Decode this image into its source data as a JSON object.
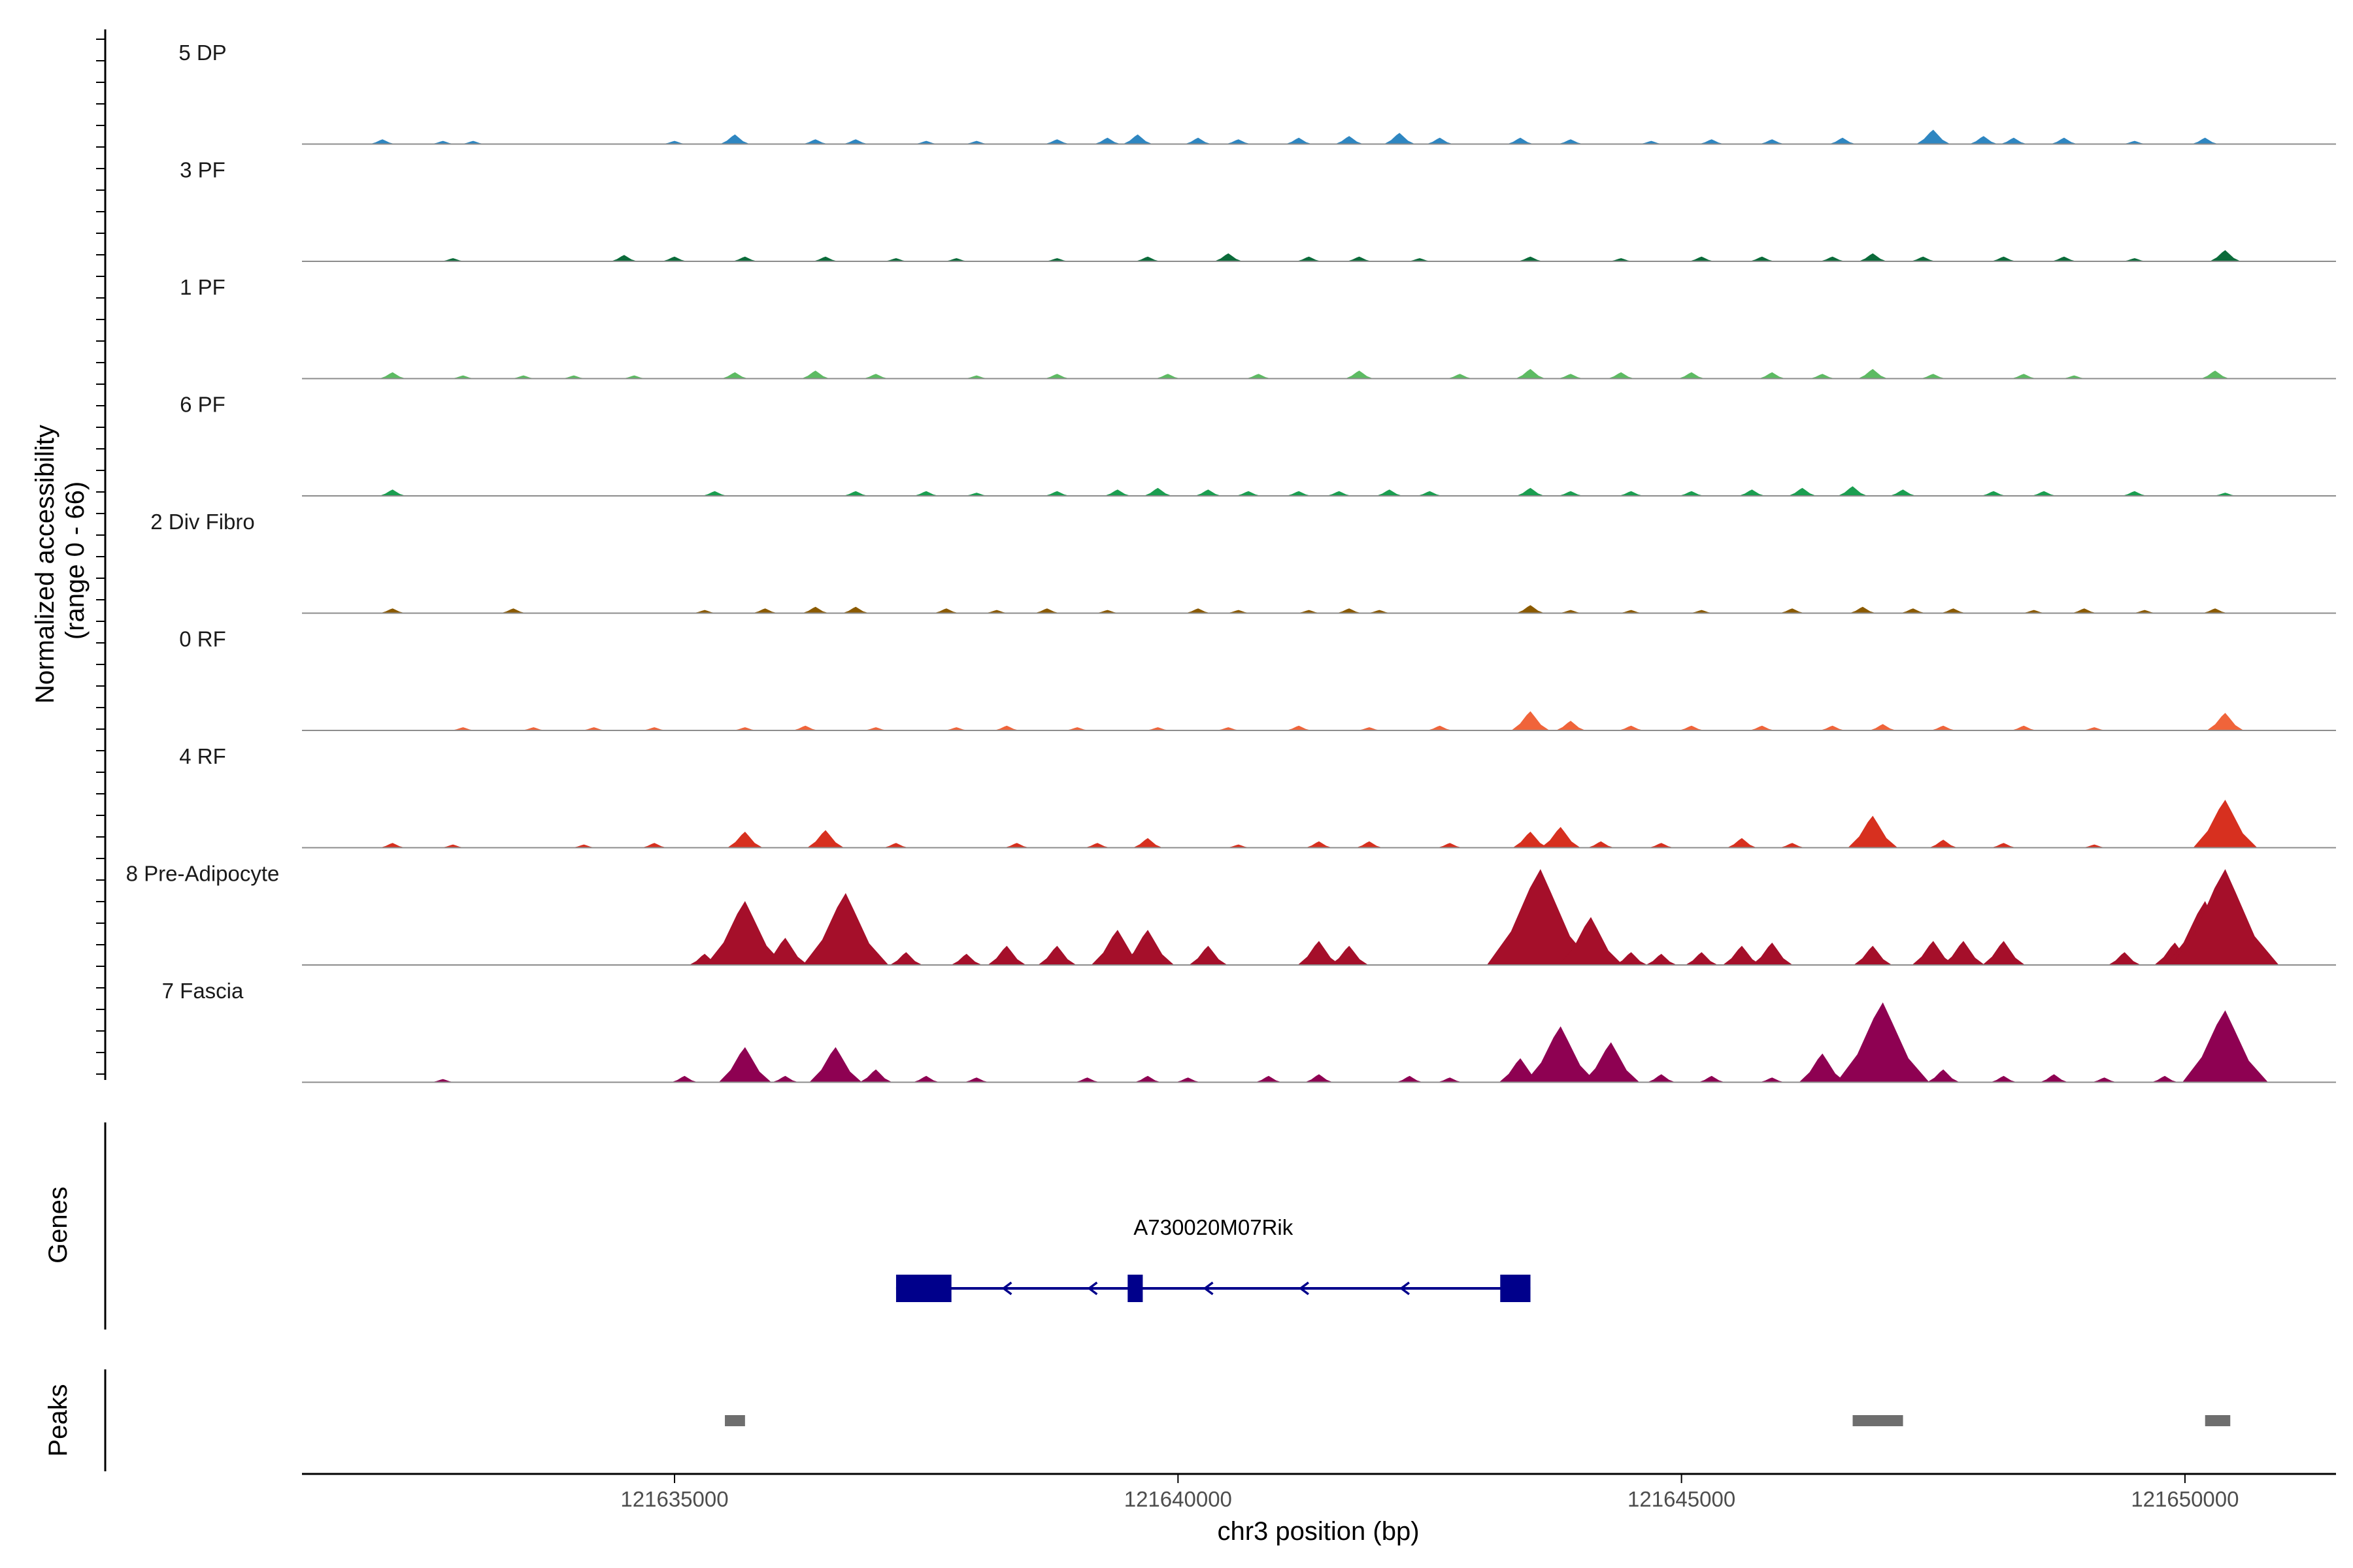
{
  "chart_data": {
    "type": "area",
    "region": {
      "chrom": "chr3",
      "start": 121631300,
      "end": 121651500
    },
    "xlabel": "chr3 position (bp)",
    "ylabel": [
      "Normalized accessibility",
      "(range 0 - 66)"
    ],
    "y_range": [
      0,
      66
    ],
    "x_ticks": [
      121635000,
      121640000,
      121645000,
      121650000
    ],
    "x_tick_labels": [
      "121635000",
      "121640000",
      "121645000",
      "121650000"
    ],
    "panel_titles": {
      "genes": "Genes",
      "peaks": "Peaks"
    },
    "tracks": [
      {
        "name": "5 DP",
        "color": "#2E86C1",
        "peaks": [
          [
            121632100,
            3
          ],
          [
            121632700,
            2
          ],
          [
            121633000,
            2
          ],
          [
            121635000,
            2
          ],
          [
            121635600,
            6
          ],
          [
            121636400,
            3
          ],
          [
            121636800,
            3
          ],
          [
            121637500,
            2
          ],
          [
            121638000,
            2
          ],
          [
            121638800,
            3
          ],
          [
            121639300,
            4
          ],
          [
            121639600,
            6
          ],
          [
            121640200,
            4
          ],
          [
            121640600,
            3
          ],
          [
            121641200,
            4
          ],
          [
            121641700,
            5
          ],
          [
            121642200,
            7
          ],
          [
            121642600,
            4
          ],
          [
            121643400,
            4
          ],
          [
            121643900,
            3
          ],
          [
            121644700,
            2
          ],
          [
            121645300,
            3
          ],
          [
            121645900,
            3
          ],
          [
            121646600,
            4
          ],
          [
            121647500,
            9
          ],
          [
            121648000,
            5
          ],
          [
            121648300,
            4
          ],
          [
            121648800,
            4
          ],
          [
            121649500,
            2
          ],
          [
            121650200,
            4
          ]
        ]
      },
      {
        "name": "3 PF",
        "color": "#0B6B3A",
        "peaks": [
          [
            121632800,
            2
          ],
          [
            121634500,
            4
          ],
          [
            121635000,
            3
          ],
          [
            121635700,
            3
          ],
          [
            121636500,
            3
          ],
          [
            121637200,
            2
          ],
          [
            121637800,
            2
          ],
          [
            121638800,
            2
          ],
          [
            121639700,
            3
          ],
          [
            121640500,
            5
          ],
          [
            121641300,
            3
          ],
          [
            121641800,
            3
          ],
          [
            121642400,
            2
          ],
          [
            121643500,
            3
          ],
          [
            121644400,
            2
          ],
          [
            121645200,
            3
          ],
          [
            121645800,
            3
          ],
          [
            121646500,
            3
          ],
          [
            121646900,
            5
          ],
          [
            121647400,
            3
          ],
          [
            121648200,
            3
          ],
          [
            121648800,
            3
          ],
          [
            121649500,
            2
          ],
          [
            121650400,
            7
          ]
        ]
      },
      {
        "name": "1 PF",
        "color": "#5DBB63",
        "peaks": [
          [
            121632200,
            4
          ],
          [
            121632900,
            2
          ],
          [
            121633500,
            2
          ],
          [
            121634000,
            2
          ],
          [
            121634600,
            2
          ],
          [
            121635600,
            4
          ],
          [
            121636400,
            5
          ],
          [
            121637000,
            3
          ],
          [
            121638000,
            2
          ],
          [
            121638800,
            3
          ],
          [
            121639900,
            3
          ],
          [
            121640800,
            3
          ],
          [
            121641800,
            5
          ],
          [
            121642800,
            3
          ],
          [
            121643500,
            6
          ],
          [
            121643900,
            3
          ],
          [
            121644400,
            4
          ],
          [
            121645100,
            4
          ],
          [
            121645900,
            4
          ],
          [
            121646400,
            3
          ],
          [
            121646900,
            6
          ],
          [
            121647500,
            3
          ],
          [
            121648400,
            3
          ],
          [
            121648900,
            2
          ],
          [
            121650300,
            5
          ]
        ]
      },
      {
        "name": "6 PF",
        "color": "#1B9E50",
        "peaks": [
          [
            121632200,
            4
          ],
          [
            121635400,
            3
          ],
          [
            121636800,
            3
          ],
          [
            121637500,
            3
          ],
          [
            121638000,
            2
          ],
          [
            121638800,
            3
          ],
          [
            121639400,
            4
          ],
          [
            121639800,
            5
          ],
          [
            121640300,
            4
          ],
          [
            121640700,
            3
          ],
          [
            121641200,
            3
          ],
          [
            121641600,
            3
          ],
          [
            121642100,
            4
          ],
          [
            121642500,
            3
          ],
          [
            121643500,
            5
          ],
          [
            121643900,
            3
          ],
          [
            121644500,
            3
          ],
          [
            121645100,
            3
          ],
          [
            121645700,
            4
          ],
          [
            121646200,
            5
          ],
          [
            121646700,
            6
          ],
          [
            121647200,
            4
          ],
          [
            121648100,
            3
          ],
          [
            121648600,
            3
          ],
          [
            121649500,
            3
          ],
          [
            121650400,
            2
          ]
        ]
      },
      {
        "name": "2 Div Fibro",
        "color": "#8B5A00",
        "peaks": [
          [
            121632200,
            3
          ],
          [
            121633400,
            3
          ],
          [
            121635300,
            2
          ],
          [
            121635900,
            3
          ],
          [
            121636400,
            4
          ],
          [
            121636800,
            4
          ],
          [
            121637700,
            3
          ],
          [
            121638200,
            2
          ],
          [
            121638700,
            3
          ],
          [
            121639300,
            2
          ],
          [
            121640200,
            3
          ],
          [
            121640600,
            2
          ],
          [
            121641300,
            2
          ],
          [
            121641700,
            3
          ],
          [
            121642000,
            2
          ],
          [
            121643500,
            5
          ],
          [
            121643900,
            2
          ],
          [
            121644500,
            2
          ],
          [
            121645200,
            2
          ],
          [
            121646100,
            3
          ],
          [
            121646800,
            4
          ],
          [
            121647300,
            3
          ],
          [
            121647700,
            3
          ],
          [
            121648500,
            2
          ],
          [
            121649000,
            3
          ],
          [
            121649600,
            2
          ],
          [
            121650300,
            3
          ]
        ]
      },
      {
        "name": "0 RF",
        "color": "#F0643A",
        "peaks": [
          [
            121632900,
            2
          ],
          [
            121633600,
            2
          ],
          [
            121634200,
            2
          ],
          [
            121634800,
            2
          ],
          [
            121635700,
            2
          ],
          [
            121636300,
            3
          ],
          [
            121637000,
            2
          ],
          [
            121637800,
            2
          ],
          [
            121638300,
            3
          ],
          [
            121639000,
            2
          ],
          [
            121639800,
            2
          ],
          [
            121640500,
            2
          ],
          [
            121641200,
            3
          ],
          [
            121641900,
            2
          ],
          [
            121642600,
            3
          ],
          [
            121643500,
            12
          ],
          [
            121643900,
            6
          ],
          [
            121644500,
            3
          ],
          [
            121645100,
            3
          ],
          [
            121645800,
            3
          ],
          [
            121646500,
            3
          ],
          [
            121647000,
            4
          ],
          [
            121647600,
            3
          ],
          [
            121648400,
            3
          ],
          [
            121649100,
            2
          ],
          [
            121650400,
            11
          ]
        ]
      },
      {
        "name": "4 RF",
        "color": "#D7301F",
        "peaks": [
          [
            121632200,
            3
          ],
          [
            121632800,
            2
          ],
          [
            121634100,
            2
          ],
          [
            121634800,
            3
          ],
          [
            121635700,
            10
          ],
          [
            121636500,
            11
          ],
          [
            121637200,
            3
          ],
          [
            121638400,
            3
          ],
          [
            121639200,
            3
          ],
          [
            121639700,
            6
          ],
          [
            121640600,
            2
          ],
          [
            121641400,
            4
          ],
          [
            121641900,
            4
          ],
          [
            121642700,
            3
          ],
          [
            121643500,
            10
          ],
          [
            121643800,
            13
          ],
          [
            121644200,
            4
          ],
          [
            121644800,
            3
          ],
          [
            121645600,
            6
          ],
          [
            121646100,
            3
          ],
          [
            121646900,
            20
          ],
          [
            121647600,
            5
          ],
          [
            121648200,
            3
          ],
          [
            121649100,
            2
          ],
          [
            121650400,
            30
          ]
        ]
      },
      {
        "name": "8 Pre-Adipocyte",
        "color": "#A50F2A",
        "peaks": [
          [
            121635300,
            7
          ],
          [
            121635700,
            40
          ],
          [
            121636100,
            17
          ],
          [
            121636500,
            12
          ],
          [
            121636700,
            45
          ],
          [
            121637300,
            8
          ],
          [
            121637900,
            7
          ],
          [
            121638300,
            12
          ],
          [
            121638800,
            12
          ],
          [
            121639400,
            22
          ],
          [
            121639700,
            22
          ],
          [
            121640300,
            12
          ],
          [
            121641400,
            15
          ],
          [
            121641700,
            12
          ],
          [
            121643400,
            14
          ],
          [
            121643600,
            60
          ],
          [
            121644100,
            30
          ],
          [
            121644500,
            8
          ],
          [
            121644800,
            7
          ],
          [
            121645200,
            8
          ],
          [
            121645600,
            12
          ],
          [
            121645900,
            14
          ],
          [
            121646900,
            12
          ],
          [
            121647500,
            15
          ],
          [
            121647800,
            15
          ],
          [
            121648200,
            15
          ],
          [
            121649400,
            8
          ],
          [
            121649900,
            14
          ],
          [
            121650200,
            40
          ],
          [
            121650400,
            60
          ]
        ]
      },
      {
        "name": "7 Fascia",
        "color": "#8E0152",
        "peaks": [
          [
            121632700,
            2
          ],
          [
            121635100,
            4
          ],
          [
            121635700,
            22
          ],
          [
            121636100,
            4
          ],
          [
            121636600,
            22
          ],
          [
            121637000,
            8
          ],
          [
            121637500,
            4
          ],
          [
            121638000,
            3
          ],
          [
            121639100,
            3
          ],
          [
            121639700,
            4
          ],
          [
            121640100,
            3
          ],
          [
            121640900,
            4
          ],
          [
            121641400,
            5
          ],
          [
            121642300,
            4
          ],
          [
            121642700,
            3
          ],
          [
            121643400,
            15
          ],
          [
            121643800,
            35
          ],
          [
            121644300,
            25
          ],
          [
            121644800,
            5
          ],
          [
            121645300,
            4
          ],
          [
            121645900,
            3
          ],
          [
            121646400,
            18
          ],
          [
            121646700,
            4
          ],
          [
            121647000,
            50
          ],
          [
            121647600,
            8
          ],
          [
            121648200,
            4
          ],
          [
            121648700,
            5
          ],
          [
            121649200,
            3
          ],
          [
            121649800,
            4
          ],
          [
            121650400,
            45
          ]
        ]
      }
    ],
    "gene": {
      "name": "A730020M07Rik",
      "strand": "-",
      "start": 121637200,
      "end": 121643500,
      "exons": [
        [
          121637200,
          121637750
        ],
        [
          121639500,
          121639650
        ],
        [
          121643200,
          121643500
        ]
      ],
      "color": "#00008B"
    },
    "peaks": [
      [
        121635500,
        121635700
      ],
      [
        121646700,
        121647200
      ],
      [
        121650200,
        121650450
      ]
    ]
  }
}
